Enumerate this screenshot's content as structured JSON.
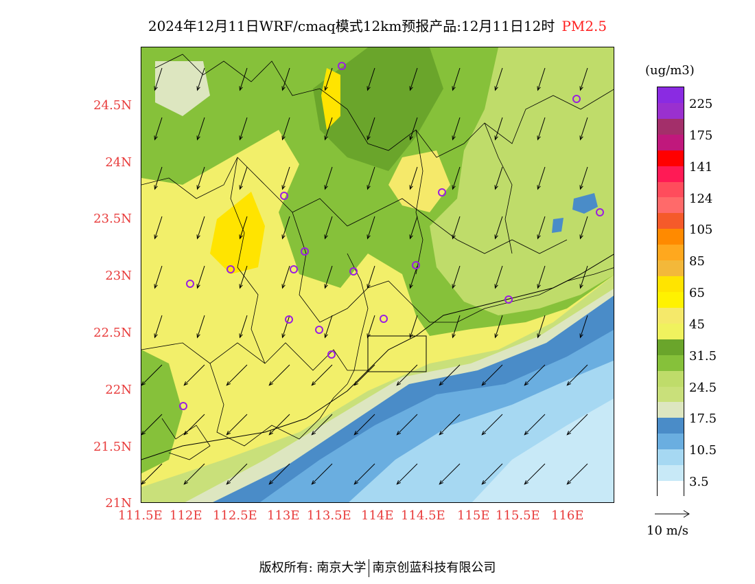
{
  "title": {
    "main": "2024年12月11日WRF/cmaq模式12km预报产品:12月11日12时",
    "pollutant": "PM2.5"
  },
  "map": {
    "y_axis_labels": [
      "24.5N",
      "24N",
      "23.5N",
      "23N",
      "22.5N",
      "22N",
      "21.5N",
      "21N"
    ],
    "x_axis_labels": [
      "111.5E",
      "112E",
      "112.5E",
      "113E",
      "113.5E",
      "114E",
      "114.5E",
      "115E",
      "115.5E",
      "116E"
    ]
  },
  "legend": {
    "unit": "(ug/m3)",
    "labels": [
      "225",
      "175",
      "141",
      "124",
      "105",
      "85",
      "65",
      "45",
      "31.5",
      "24.5",
      "17.5",
      "10.5",
      "3.5"
    ],
    "colors": [
      "#8a2be2",
      "#9a30cf",
      "#a32f6a",
      "#c0187c",
      "#ff0000",
      "#ff1a55",
      "#ff4c5c",
      "#ff6a6a",
      "#f55a2a",
      "#ff8a00",
      "#ffa81e",
      "#f3b83a",
      "#ffe400",
      "#fff200",
      "#f5e96a",
      "#f0f25e",
      "#6aa52b",
      "#86c13a",
      "#bfdc6a",
      "#c9e07a",
      "#dde6c0",
      "#4a8cc8",
      "#6aaee0",
      "#a6d8f2",
      "#c8e9f7",
      "#ffffff"
    ],
    "wind_scale_label": "10  m/s"
  },
  "footer": {
    "left": "版权所有: 南京大学",
    "right": "南京创蓝科技有限公司"
  }
}
